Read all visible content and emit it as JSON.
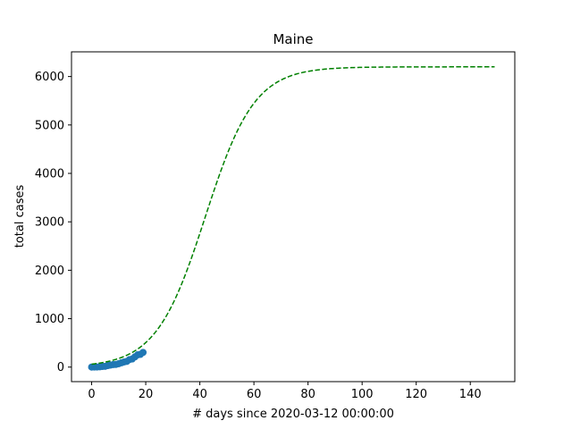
{
  "chart_data": {
    "type": "line",
    "title": "Maine",
    "xlabel": "# days since 2020-03-12 00:00:00",
    "ylabel": "total cases",
    "xlim": [
      -7.45,
      156.45
    ],
    "ylim": [
      -300,
      6510
    ],
    "x_ticks": [
      0,
      20,
      40,
      60,
      80,
      100,
      120,
      140
    ],
    "y_ticks": [
      0,
      1000,
      2000,
      3000,
      4000,
      5000,
      6000
    ],
    "grid": false,
    "series": [
      {
        "kind": "scatter",
        "color": "#1f77b4",
        "x": [
          0,
          1,
          2,
          3,
          4,
          5,
          6,
          7,
          8,
          9,
          10,
          11,
          12,
          13,
          14,
          15,
          16,
          17,
          18,
          19
        ],
        "y": [
          1,
          2,
          3,
          7,
          13,
          17,
          32,
          42,
          52,
          56,
          70,
          89,
          107,
          118,
          155,
          168,
          211,
          253,
          262,
          303
        ]
      },
      {
        "kind": "line",
        "style": "dashed",
        "color": "#008000",
        "model": "logistic",
        "K": 6200,
        "r": 0.11,
        "x0": 42,
        "x_range": [
          0,
          149
        ]
      }
    ]
  }
}
